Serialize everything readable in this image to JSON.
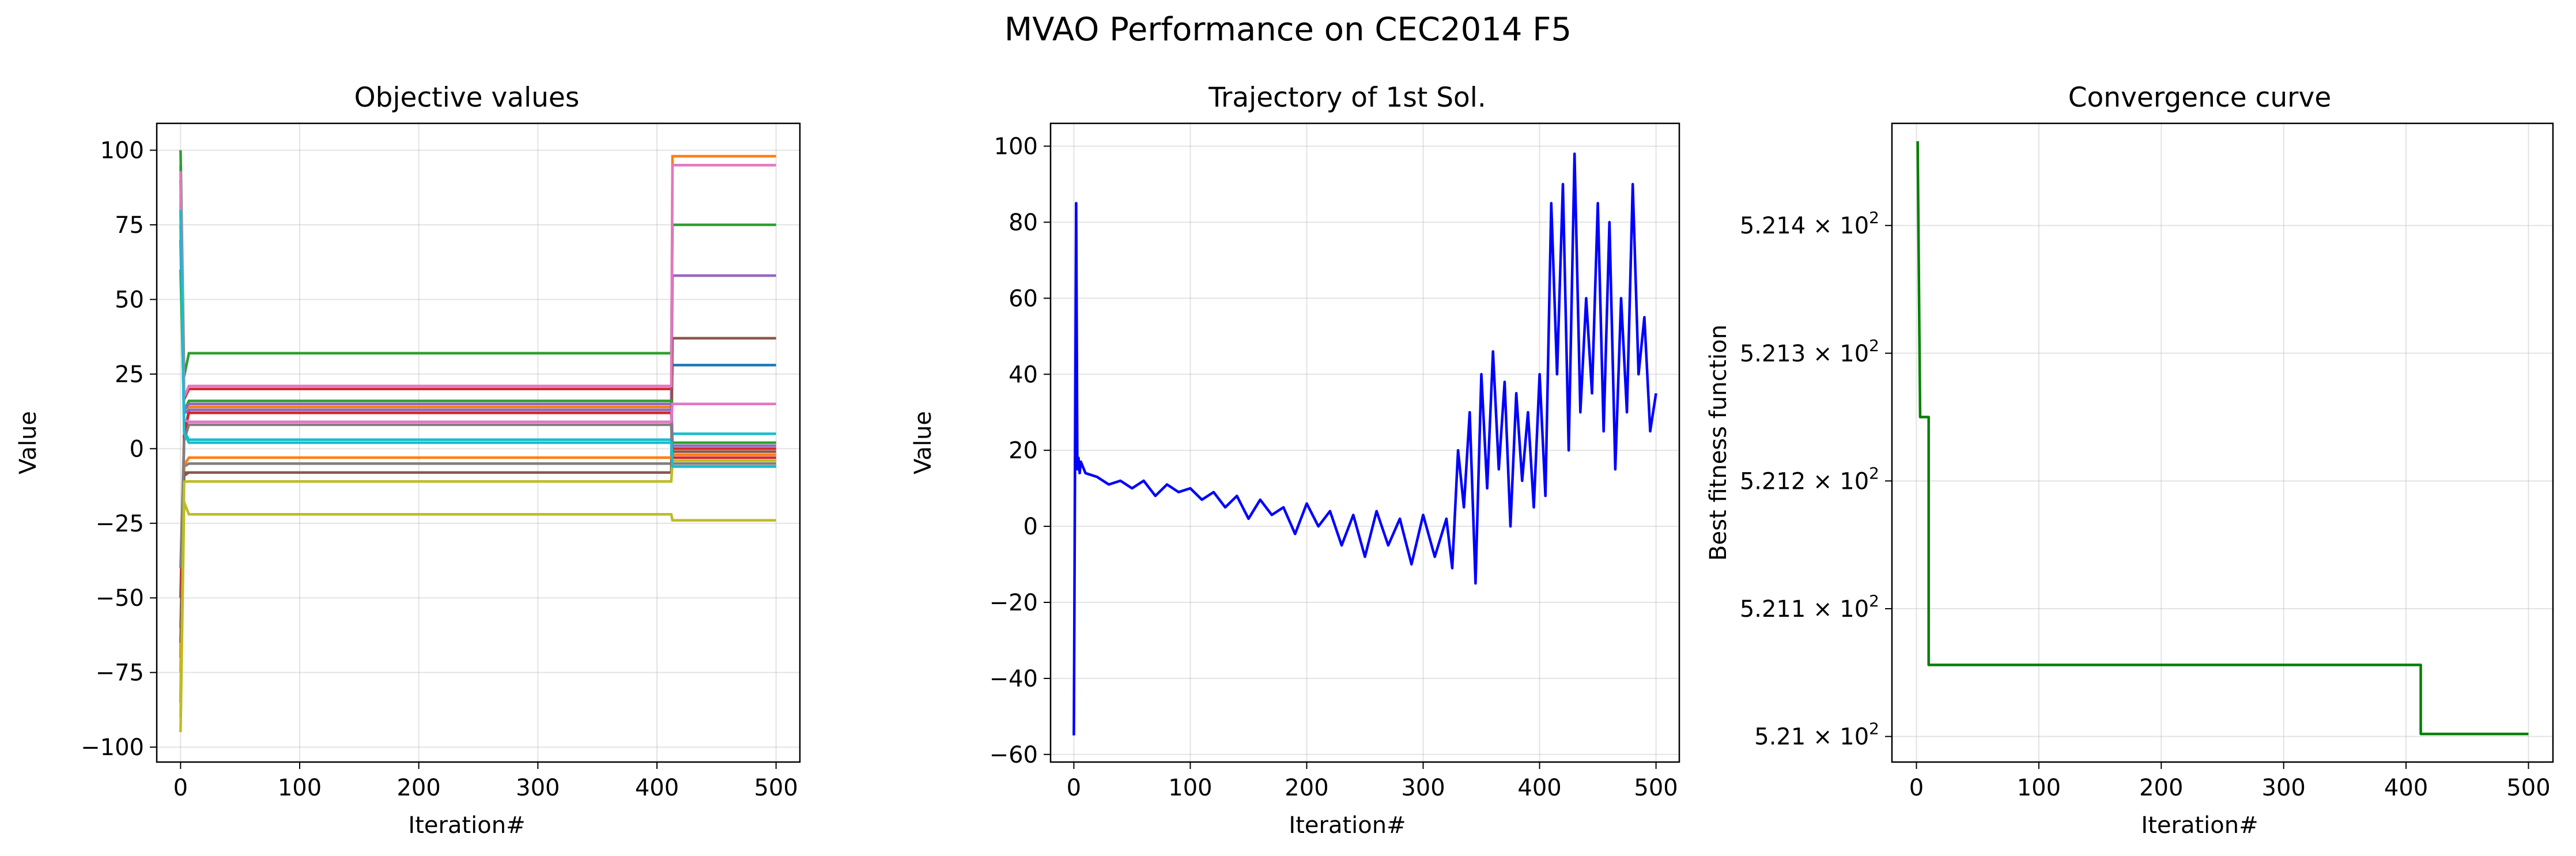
{
  "figure": {
    "title": "MVAO Performance on CEC2014 F5"
  },
  "chart_data": [
    {
      "type": "line",
      "title": "Objective values",
      "xlabel": "Iteration#",
      "ylabel": "Value",
      "xlim": [
        -20,
        520
      ],
      "ylim": [
        -105,
        109
      ],
      "xticks": [
        0,
        100,
        200,
        300,
        400,
        500
      ],
      "xtick_labels": [
        "0",
        "100",
        "200",
        "300",
        "400",
        "500"
      ],
      "yticks": [
        -100,
        -75,
        -50,
        -25,
        0,
        25,
        50,
        75,
        100
      ],
      "ytick_labels": [
        "−100",
        "−75",
        "−50",
        "−25",
        "0",
        "25",
        "50",
        "75",
        "100"
      ],
      "grid": true,
      "series": [
        {
          "color": "#1f77b4",
          "start": -70,
          "mid": 13,
          "end": 28
        },
        {
          "color": "#ff7f0e",
          "start": 95,
          "mid": 14,
          "end": 98
        },
        {
          "color": "#2ca02c",
          "start": 100,
          "mid": 32,
          "end": 75
        },
        {
          "color": "#d62728",
          "start": 90,
          "mid": 20,
          "end": -3
        },
        {
          "color": "#9467bd",
          "start": 80,
          "mid": 13,
          "end": 58
        },
        {
          "color": "#8c564b",
          "start": -85,
          "mid": -8,
          "end": 37
        },
        {
          "color": "#e377c2",
          "start": 93,
          "mid": 21,
          "end": 95
        },
        {
          "color": "#7f7f7f",
          "start": -60,
          "mid": -5,
          "end": -4
        },
        {
          "color": "#bcbd22",
          "start": -95,
          "mid": -22,
          "end": -24
        },
        {
          "color": "#17becf",
          "start": 82,
          "mid": 3,
          "end": 5
        },
        {
          "color": "#1f77b4",
          "start": 70,
          "mid": 9,
          "end": -6
        },
        {
          "color": "#ff7f0e",
          "start": -75,
          "mid": -3,
          "end": -2
        },
        {
          "color": "#2ca02c",
          "start": 60,
          "mid": 16,
          "end": 2
        },
        {
          "color": "#d62728",
          "start": -50,
          "mid": 12,
          "end": 0
        },
        {
          "color": "#9467bd",
          "start": 75,
          "mid": 15,
          "end": 1
        },
        {
          "color": "#8c564b",
          "start": -65,
          "mid": -8,
          "end": -1
        },
        {
          "color": "#e377c2",
          "start": 85,
          "mid": 9,
          "end": 15
        },
        {
          "color": "#7f7f7f",
          "start": -40,
          "mid": 8,
          "end": -5
        },
        {
          "color": "#bcbd22",
          "start": -90,
          "mid": -11,
          "end": -4
        },
        {
          "color": "#17becf",
          "start": 80,
          "mid": 2,
          "end": -6
        }
      ]
    },
    {
      "type": "line",
      "title": "Trajectory of 1st Sol.",
      "xlabel": "Iteration#",
      "ylabel": "Value",
      "xlim": [
        -20,
        520
      ],
      "ylim": [
        -62,
        106
      ],
      "xticks": [
        0,
        100,
        200,
        300,
        400,
        500
      ],
      "xtick_labels": [
        "0",
        "100",
        "200",
        "300",
        "400",
        "500"
      ],
      "yticks": [
        -60,
        -40,
        -20,
        0,
        20,
        40,
        60,
        80,
        100
      ],
      "ytick_labels": [
        "−60",
        "−40",
        "−20",
        "0",
        "20",
        "40",
        "60",
        "80",
        "100"
      ],
      "grid": true,
      "color": "#0000ff",
      "series": [
        {
          "x": [
            0,
            2,
            3,
            4,
            5,
            6,
            10,
            20,
            30,
            40,
            50,
            60,
            70,
            80,
            90,
            100,
            110,
            120,
            130,
            140,
            150,
            160,
            170,
            180,
            190,
            200,
            210,
            220,
            230,
            240,
            250,
            260,
            270,
            280,
            290,
            300,
            310,
            320,
            325,
            330,
            335,
            340,
            345,
            350,
            355,
            360,
            365,
            370,
            375,
            380,
            385,
            390,
            395,
            400,
            405,
            410,
            415,
            420,
            425,
            430,
            435,
            440,
            445,
            450,
            455,
            460,
            465,
            470,
            475,
            480,
            485,
            490,
            495,
            500
          ],
          "y": [
            -55,
            85,
            15,
            18,
            14,
            17,
            14,
            13,
            11,
            12,
            10,
            12,
            8,
            11,
            9,
            10,
            7,
            9,
            5,
            8,
            2,
            7,
            3,
            5,
            -2,
            6,
            0,
            4,
            -5,
            3,
            -8,
            4,
            -5,
            2,
            -10,
            3,
            -8,
            2,
            -11,
            20,
            5,
            30,
            -15,
            40,
            10,
            46,
            15,
            38,
            0,
            35,
            12,
            30,
            5,
            40,
            8,
            85,
            40,
            90,
            20,
            98,
            30,
            60,
            35,
            85,
            25,
            80,
            15,
            60,
            30,
            90,
            40,
            55,
            25,
            35
          ]
        }
      ]
    },
    {
      "type": "line",
      "title": "Convergence curve",
      "xlabel": "Iteration#",
      "ylabel": "Best fitness function",
      "yscale": "log",
      "xlim": [
        -20,
        520
      ],
      "ylim": [
        520.98,
        521.48
      ],
      "xticks": [
        0,
        100,
        200,
        300,
        400,
        500
      ],
      "xtick_labels": [
        "0",
        "100",
        "200",
        "300",
        "400",
        "500"
      ],
      "yticks": [
        521.0,
        521.1,
        521.2,
        521.3,
        521.4
      ],
      "ytick_labels": [
        {
          "mant": "5.21",
          "exp": "2"
        },
        {
          "mant": "5.211",
          "exp": "2"
        },
        {
          "mant": "5.212",
          "exp": "2"
        },
        {
          "mant": "5.213",
          "exp": "2"
        },
        {
          "mant": "5.214",
          "exp": "2"
        }
      ],
      "grid": true,
      "color": "#008000",
      "series": [
        {
          "x": [
            1,
            3,
            4,
            10,
            10,
            412,
            412,
            500
          ],
          "y": [
            521.466,
            521.25,
            521.25,
            521.25,
            521.056,
            521.056,
            521.002,
            521.002
          ]
        }
      ]
    }
  ]
}
